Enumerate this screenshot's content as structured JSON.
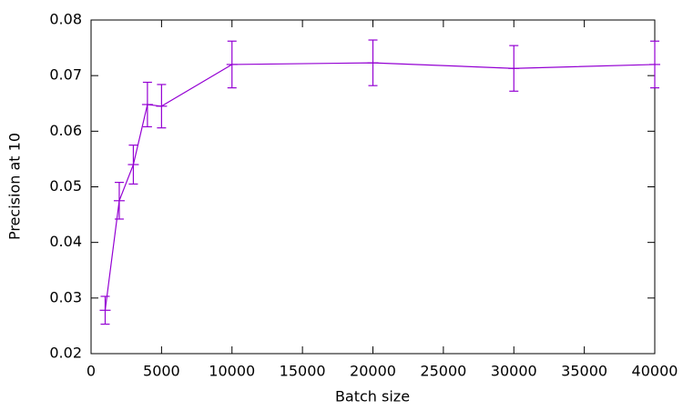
{
  "chart_data": {
    "type": "line",
    "x_label": "Batch size",
    "y_label": "Precision at 10",
    "x": [
      1000,
      2000,
      3000,
      4000,
      5000,
      10000,
      20000,
      30000,
      40000
    ],
    "series": [
      {
        "color": "#9400d3",
        "values": [
          0.0278,
          0.0475,
          0.054,
          0.0648,
          0.0645,
          0.072,
          0.0723,
          0.0713,
          0.072
        ],
        "errors": [
          0.0025,
          0.0033,
          0.0035,
          0.004,
          0.0039,
          0.0042,
          0.0041,
          0.0041,
          0.0042
        ]
      }
    ],
    "xlim": [
      0,
      40000
    ],
    "ylim": [
      0.02,
      0.08
    ],
    "xticks": [
      0,
      5000,
      10000,
      15000,
      20000,
      25000,
      30000,
      35000,
      40000
    ],
    "yticks": [
      0.02,
      0.03,
      0.04,
      0.05,
      0.06,
      0.07,
      0.08
    ],
    "grid": false
  }
}
